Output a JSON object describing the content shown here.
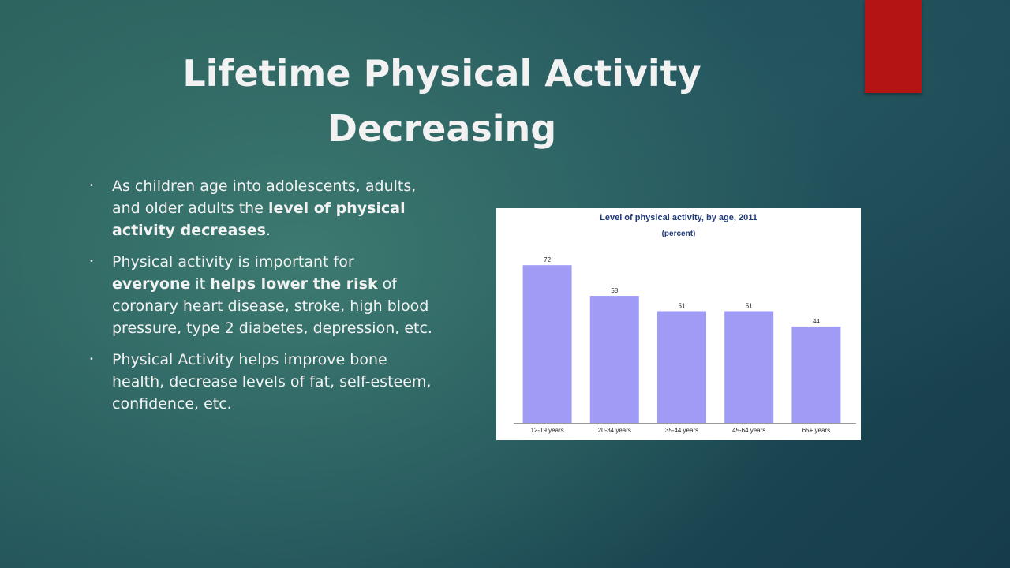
{
  "slide": {
    "title_line1": "Lifetime Physical Activity",
    "title_line2": "Decreasing",
    "accent_color": "#b41414"
  },
  "bullets": [
    {
      "parts": [
        {
          "text": "As children age into adolescents, adults, and older adults the ",
          "bold": false
        },
        {
          "text": "level of physical activity decreases",
          "bold": true
        },
        {
          "text": ".",
          "bold": false
        }
      ]
    },
    {
      "parts": [
        {
          "text": "Physical activity is important for ",
          "bold": false
        },
        {
          "text": "everyone",
          "bold": true
        },
        {
          "text": " it ",
          "bold": false
        },
        {
          "text": "helps lower the risk",
          "bold": true
        },
        {
          "text": " of coronary heart disease, stroke, high blood pressure, type 2 diabetes, depression, etc.",
          "bold": false
        }
      ]
    },
    {
      "parts": [
        {
          "text": " Physical Activity helps improve bone health, decrease levels of fat, self-esteem, confidence, etc.",
          "bold": false
        }
      ]
    }
  ],
  "chart_data": {
    "type": "bar",
    "title": "Level of physical activity, by age, 2011",
    "subtitle": "(percent)",
    "categories": [
      "12-19 years",
      "20-34 years",
      "35-44 years",
      "45-64 years",
      "65+ years"
    ],
    "values": [
      72,
      58,
      51,
      51,
      44
    ],
    "data_labels": [
      "72",
      "58",
      "51",
      "51",
      "44"
    ],
    "ylim": [
      0,
      80
    ],
    "bar_color": "#a09cf6",
    "grid": false,
    "legend": "none"
  }
}
